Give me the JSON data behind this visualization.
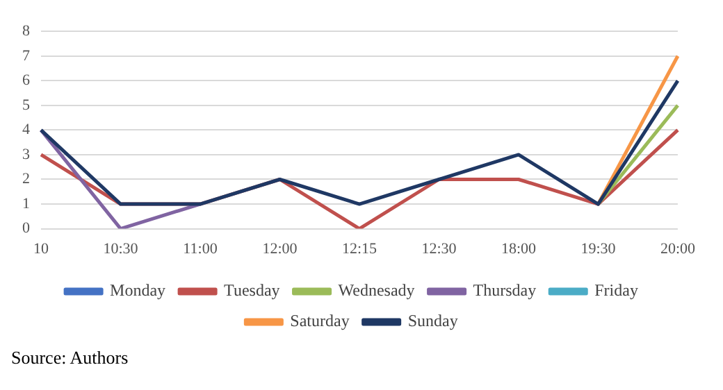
{
  "chart_data": {
    "type": "line",
    "categories": [
      "10",
      "10:30",
      "11:00",
      "12:00",
      "12:15",
      "12:30",
      "18:00",
      "19:30",
      "20:00"
    ],
    "series": [
      {
        "name": "Monday",
        "color": "#4472c4",
        "values": [
          null,
          null,
          null,
          null,
          null,
          null,
          null,
          null,
          null
        ]
      },
      {
        "name": "Tuesday",
        "color": "#c0504d",
        "values": [
          3,
          1,
          1,
          2,
          0,
          2,
          2,
          1,
          4
        ]
      },
      {
        "name": "Wednesady",
        "color": "#9bbb59",
        "values": [
          null,
          null,
          null,
          null,
          null,
          null,
          null,
          1,
          5
        ]
      },
      {
        "name": "Thursday",
        "color": "#8064a2",
        "values": [
          4,
          0,
          1,
          null,
          null,
          null,
          null,
          null,
          null
        ]
      },
      {
        "name": "Friday",
        "color": "#4bacc6",
        "values": [
          null,
          null,
          null,
          null,
          null,
          null,
          null,
          null,
          null
        ]
      },
      {
        "name": "Saturday",
        "color": "#f79646",
        "values": [
          null,
          null,
          null,
          null,
          null,
          null,
          null,
          1,
          7
        ]
      },
      {
        "name": "Sunday",
        "color": "#1f3864",
        "values": [
          4,
          1,
          1,
          2,
          1,
          2,
          3,
          1,
          6
        ]
      }
    ],
    "ylim": [
      0,
      8
    ],
    "yticks": [
      0,
      1,
      2,
      3,
      4,
      5,
      6,
      7,
      8
    ],
    "grid": "y",
    "legend": "bottom",
    "marker": "none",
    "line_style": "solid",
    "annotations": [
      "Source: Authors"
    ]
  }
}
